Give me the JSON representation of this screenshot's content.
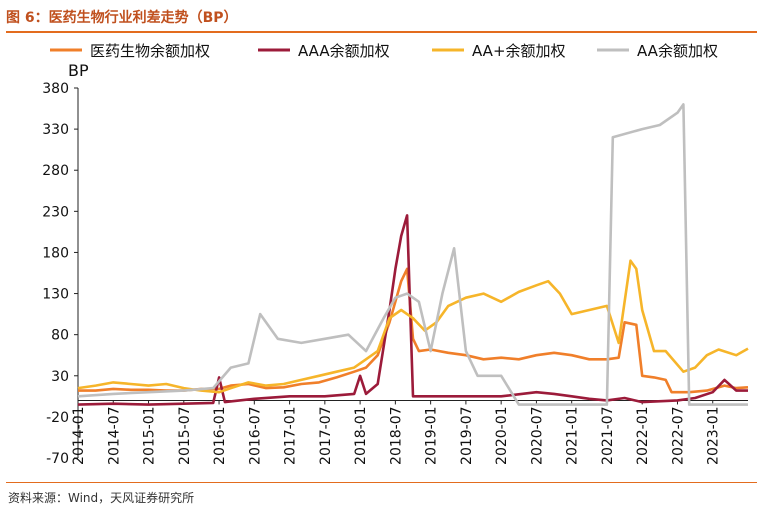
{
  "header": {
    "title": "图 6：医药生物行业利差走势（BP）"
  },
  "footer": {
    "source": "资料来源：Wind，天风证券研究所"
  },
  "chart_data": {
    "type": "line",
    "title": "图 6：医药生物行业利差走势（BP）",
    "ylabel": "BP",
    "xlabel": "",
    "ylim": [
      -70,
      380
    ],
    "yticks": [
      -70,
      -20,
      30,
      80,
      130,
      180,
      230,
      280,
      330,
      380
    ],
    "xlim": [
      "2014-01",
      "2023-07"
    ],
    "xticks": [
      "2014-01",
      "2014-07",
      "2015-01",
      "2015-07",
      "2016-01",
      "2016-07",
      "2017-01",
      "2017-07",
      "2018-01",
      "2018-07",
      "2019-01",
      "2019-07",
      "2020-01",
      "2020-07",
      "2021-01",
      "2021-07",
      "2022-01",
      "2022-07",
      "2023-01"
    ],
    "grid": false,
    "legend_position": "top",
    "series": [
      {
        "name": "医药生物余额加权",
        "color": "#f07f2a",
        "points": [
          [
            "2014-01",
            12
          ],
          [
            "2014-04",
            12
          ],
          [
            "2014-07",
            14
          ],
          [
            "2014-10",
            13
          ],
          [
            "2015-01",
            13
          ],
          [
            "2015-04",
            12
          ],
          [
            "2015-07",
            12
          ],
          [
            "2015-10",
            14
          ],
          [
            "2016-01",
            14
          ],
          [
            "2016-03",
            18
          ],
          [
            "2016-06",
            20
          ],
          [
            "2016-09",
            15
          ],
          [
            "2016-12",
            16
          ],
          [
            "2017-03",
            20
          ],
          [
            "2017-06",
            22
          ],
          [
            "2017-09",
            28
          ],
          [
            "2017-12",
            35
          ],
          [
            "2018-02",
            40
          ],
          [
            "2018-04",
            55
          ],
          [
            "2018-06",
            95
          ],
          [
            "2018-08",
            145
          ],
          [
            "2018-09",
            160
          ],
          [
            "2018-10",
            75
          ],
          [
            "2018-11",
            60
          ],
          [
            "2019-01",
            62
          ],
          [
            "2019-04",
            58
          ],
          [
            "2019-07",
            55
          ],
          [
            "2019-10",
            50
          ],
          [
            "2020-01",
            52
          ],
          [
            "2020-04",
            50
          ],
          [
            "2020-07",
            55
          ],
          [
            "2020-10",
            58
          ],
          [
            "2021-01",
            55
          ],
          [
            "2021-04",
            50
          ],
          [
            "2021-07",
            50
          ],
          [
            "2021-09",
            52
          ],
          [
            "2021-10",
            95
          ],
          [
            "2021-12",
            92
          ],
          [
            "2022-01",
            30
          ],
          [
            "2022-03",
            28
          ],
          [
            "2022-05",
            25
          ],
          [
            "2022-06",
            10
          ],
          [
            "2022-09",
            10
          ],
          [
            "2022-12",
            12
          ],
          [
            "2023-03",
            18
          ],
          [
            "2023-05",
            15
          ],
          [
            "2023-07",
            16
          ]
        ]
      },
      {
        "name": "AAA余额加权",
        "color": "#9c1b3a",
        "points": [
          [
            "2014-01",
            -5
          ],
          [
            "2014-07",
            -4
          ],
          [
            "2015-01",
            -5
          ],
          [
            "2015-07",
            -4
          ],
          [
            "2015-12",
            -3
          ],
          [
            "2016-01",
            28
          ],
          [
            "2016-02",
            -2
          ],
          [
            "2016-07",
            2
          ],
          [
            "2017-01",
            5
          ],
          [
            "2017-07",
            5
          ],
          [
            "2017-12",
            8
          ],
          [
            "2018-01",
            30
          ],
          [
            "2018-02",
            8
          ],
          [
            "2018-04",
            20
          ],
          [
            "2018-06",
            110
          ],
          [
            "2018-07",
            160
          ],
          [
            "2018-08",
            200
          ],
          [
            "2018-09",
            225
          ],
          [
            "2018-10",
            5
          ],
          [
            "2019-01",
            5
          ],
          [
            "2019-07",
            5
          ],
          [
            "2020-01",
            5
          ],
          [
            "2020-07",
            10
          ],
          [
            "2020-10",
            8
          ],
          [
            "2021-01",
            5
          ],
          [
            "2021-04",
            2
          ],
          [
            "2021-07",
            0
          ],
          [
            "2021-10",
            3
          ],
          [
            "2022-01",
            -2
          ],
          [
            "2022-07",
            0
          ],
          [
            "2022-10",
            3
          ],
          [
            "2023-01",
            10
          ],
          [
            "2023-03",
            25
          ],
          [
            "2023-05",
            12
          ],
          [
            "2023-07",
            12
          ]
        ]
      },
      {
        "name": "AA+余额加权",
        "color": "#f6b52a",
        "points": [
          [
            "2014-01",
            15
          ],
          [
            "2014-04",
            18
          ],
          [
            "2014-07",
            22
          ],
          [
            "2014-10",
            20
          ],
          [
            "2015-01",
            18
          ],
          [
            "2015-04",
            20
          ],
          [
            "2015-07",
            15
          ],
          [
            "2015-10",
            12
          ],
          [
            "2016-01",
            10
          ],
          [
            "2016-03",
            15
          ],
          [
            "2016-06",
            22
          ],
          [
            "2016-09",
            18
          ],
          [
            "2016-12",
            20
          ],
          [
            "2017-03",
            25
          ],
          [
            "2017-06",
            30
          ],
          [
            "2017-09",
            35
          ],
          [
            "2017-12",
            40
          ],
          [
            "2018-02",
            50
          ],
          [
            "2018-04",
            60
          ],
          [
            "2018-06",
            100
          ],
          [
            "2018-08",
            110
          ],
          [
            "2018-10",
            100
          ],
          [
            "2018-12",
            85
          ],
          [
            "2019-02",
            95
          ],
          [
            "2019-04",
            115
          ],
          [
            "2019-07",
            125
          ],
          [
            "2019-10",
            130
          ],
          [
            "2020-01",
            120
          ],
          [
            "2020-04",
            132
          ],
          [
            "2020-07",
            140
          ],
          [
            "2020-09",
            145
          ],
          [
            "2020-11",
            130
          ],
          [
            "2021-01",
            105
          ],
          [
            "2021-04",
            110
          ],
          [
            "2021-07",
            115
          ],
          [
            "2021-09",
            70
          ],
          [
            "2021-11",
            170
          ],
          [
            "2021-12",
            160
          ],
          [
            "2022-01",
            110
          ],
          [
            "2022-03",
            60
          ],
          [
            "2022-05",
            60
          ],
          [
            "2022-08",
            35
          ],
          [
            "2022-10",
            40
          ],
          [
            "2022-12",
            55
          ],
          [
            "2023-02",
            62
          ],
          [
            "2023-05",
            55
          ],
          [
            "2023-07",
            63
          ]
        ]
      },
      {
        "name": "AA余额加权",
        "color": "#bfbfbf",
        "points": [
          [
            "2014-01",
            5
          ],
          [
            "2014-07",
            8
          ],
          [
            "2015-01",
            10
          ],
          [
            "2015-07",
            12
          ],
          [
            "2015-12",
            15
          ],
          [
            "2016-03",
            40
          ],
          [
            "2016-06",
            45
          ],
          [
            "2016-08",
            105
          ],
          [
            "2016-11",
            75
          ],
          [
            "2017-03",
            70
          ],
          [
            "2017-07",
            75
          ],
          [
            "2017-11",
            80
          ],
          [
            "2018-02",
            60
          ],
          [
            "2018-05",
            100
          ],
          [
            "2018-07",
            125
          ],
          [
            "2018-09",
            130
          ],
          [
            "2018-11",
            120
          ],
          [
            "2019-01",
            60
          ],
          [
            "2019-03",
            130
          ],
          [
            "2019-05",
            185
          ],
          [
            "2019-07",
            60
          ],
          [
            "2019-09",
            30
          ],
          [
            "2020-01",
            30
          ],
          [
            "2020-04",
            -5
          ],
          [
            "2021-01",
            -5
          ],
          [
            "2021-07",
            -5
          ],
          [
            "2021-08",
            320
          ],
          [
            "2022-01",
            330
          ],
          [
            "2022-04",
            335
          ],
          [
            "2022-07",
            350
          ],
          [
            "2022-08",
            360
          ],
          [
            "2022-09",
            -5
          ],
          [
            "2023-01",
            -5
          ],
          [
            "2023-07",
            -5
          ]
        ]
      }
    ]
  }
}
